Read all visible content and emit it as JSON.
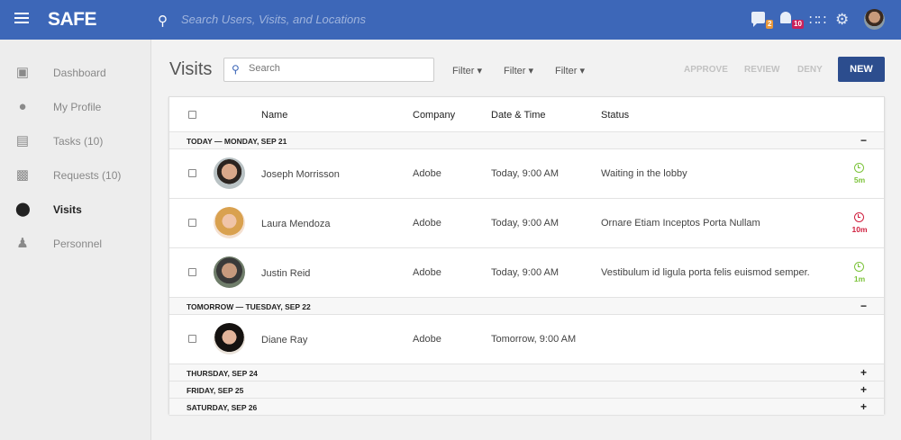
{
  "header": {
    "logo": "SAFE",
    "search_placeholder": "Search Users, Visits, and Locations",
    "messages_badge": "2",
    "notifications_badge": "10"
  },
  "sidebar": {
    "items": [
      {
        "label": "Dashboard",
        "icon": "dashboard-icon"
      },
      {
        "label": "My Profile",
        "icon": "account-circle-icon"
      },
      {
        "label": "Tasks (10)",
        "icon": "clipboard-icon"
      },
      {
        "label": "Requests (10)",
        "icon": "inbox-icon"
      },
      {
        "label": "Visits",
        "icon": "location-pin-icon",
        "active": true
      },
      {
        "label": "Personnel",
        "icon": "people-icon"
      }
    ]
  },
  "main": {
    "title": "Visits",
    "search_placeholder": "Search",
    "filters": [
      "Filter",
      "Filter",
      "Filter"
    ],
    "actions": {
      "approve": "APPROVE",
      "review": "REVIEW",
      "deny": "DENY",
      "new": "NEW"
    },
    "columns": {
      "name": "Name",
      "company": "Company",
      "datetime": "Date & Time",
      "status": "Status"
    },
    "groups": [
      {
        "label": "TODAY — MONDAY, SEP 21",
        "toggle": "−",
        "rows": [
          {
            "name": "Joseph Morrisson",
            "company": "Adobe",
            "datetime": "Today, 9:00 AM",
            "status": "Waiting in the lobby",
            "wait": "5m",
            "wait_color": "#7cc33a"
          },
          {
            "name": "Laura Mendoza",
            "company": "Adobe",
            "datetime": "Today, 9:00 AM",
            "status": "Ornare Etiam Inceptos Porta Nullam",
            "wait": "10m",
            "wait_color": "#d0203f"
          },
          {
            "name": "Justin Reid",
            "company": "Adobe",
            "datetime": "Today, 9:00 AM",
            "status": "Vestibulum id ligula porta felis euismod semper.",
            "wait": "1m",
            "wait_color": "#7cc33a"
          }
        ]
      },
      {
        "label": "TOMORROW — TUESDAY, SEP 22",
        "toggle": "−",
        "rows": [
          {
            "name": "Diane Ray",
            "company": "Adobe",
            "datetime": "Tomorrow, 9:00 AM",
            "status": ""
          }
        ]
      },
      {
        "label": "THURSDAY, SEP 24",
        "toggle": "+"
      },
      {
        "label": "FRIDAY, SEP 25",
        "toggle": "+"
      },
      {
        "label": "SATURDAY, SEP 26",
        "toggle": "+"
      }
    ]
  },
  "colors": {
    "header": "#3d67b8",
    "primary_button": "#2c4d8e",
    "ok": "#7cc33a",
    "late": "#d0203f"
  }
}
